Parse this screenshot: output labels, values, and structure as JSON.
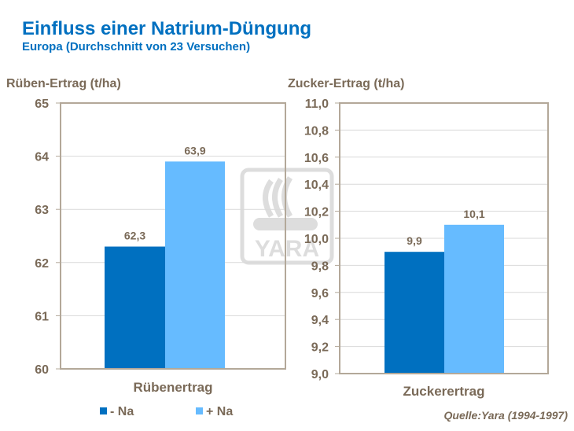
{
  "title": "Einfluss einer Natrium-Düngung",
  "subtitle": "Europa (Durchschnitt  von 23 Versuchen)",
  "source": "Quelle:Yara  (1994-1997)",
  "watermark": "YARA",
  "colors": {
    "title": "#0070c0",
    "text": "#7a6a58",
    "minus_na": "#0070c0",
    "plus_na": "#66bbff",
    "grid": "#d9d9d9",
    "frame": "#b3a899"
  },
  "legend": [
    {
      "label": "- Na",
      "color": "#0070c0"
    },
    {
      "label": "+ Na",
      "color": "#66bbff"
    }
  ],
  "chart_data": [
    {
      "type": "bar",
      "ylabel": "Rüben-Ertrag (t/ha)",
      "categories": [
        "Rübenertrag"
      ],
      "ylim": [
        60,
        65
      ],
      "ytick_step": 1,
      "decimals": 0,
      "grid": true,
      "series": [
        {
          "name": "- Na",
          "values": [
            62.3
          ],
          "labels": [
            "62,3"
          ]
        },
        {
          "name": "+ Na",
          "values": [
            63.9
          ],
          "labels": [
            "63,9"
          ]
        }
      ]
    },
    {
      "type": "bar",
      "ylabel": "Zucker-Ertrag (t/ha)",
      "categories": [
        "Zuckerertrag"
      ],
      "ylim": [
        9.0,
        11.0
      ],
      "ytick_step": 0.2,
      "decimals": 1,
      "grid": true,
      "series": [
        {
          "name": "- Na",
          "values": [
            9.9
          ],
          "labels": [
            "9,9"
          ]
        },
        {
          "name": "+ Na",
          "values": [
            10.1
          ],
          "labels": [
            "10,1"
          ]
        }
      ]
    }
  ]
}
